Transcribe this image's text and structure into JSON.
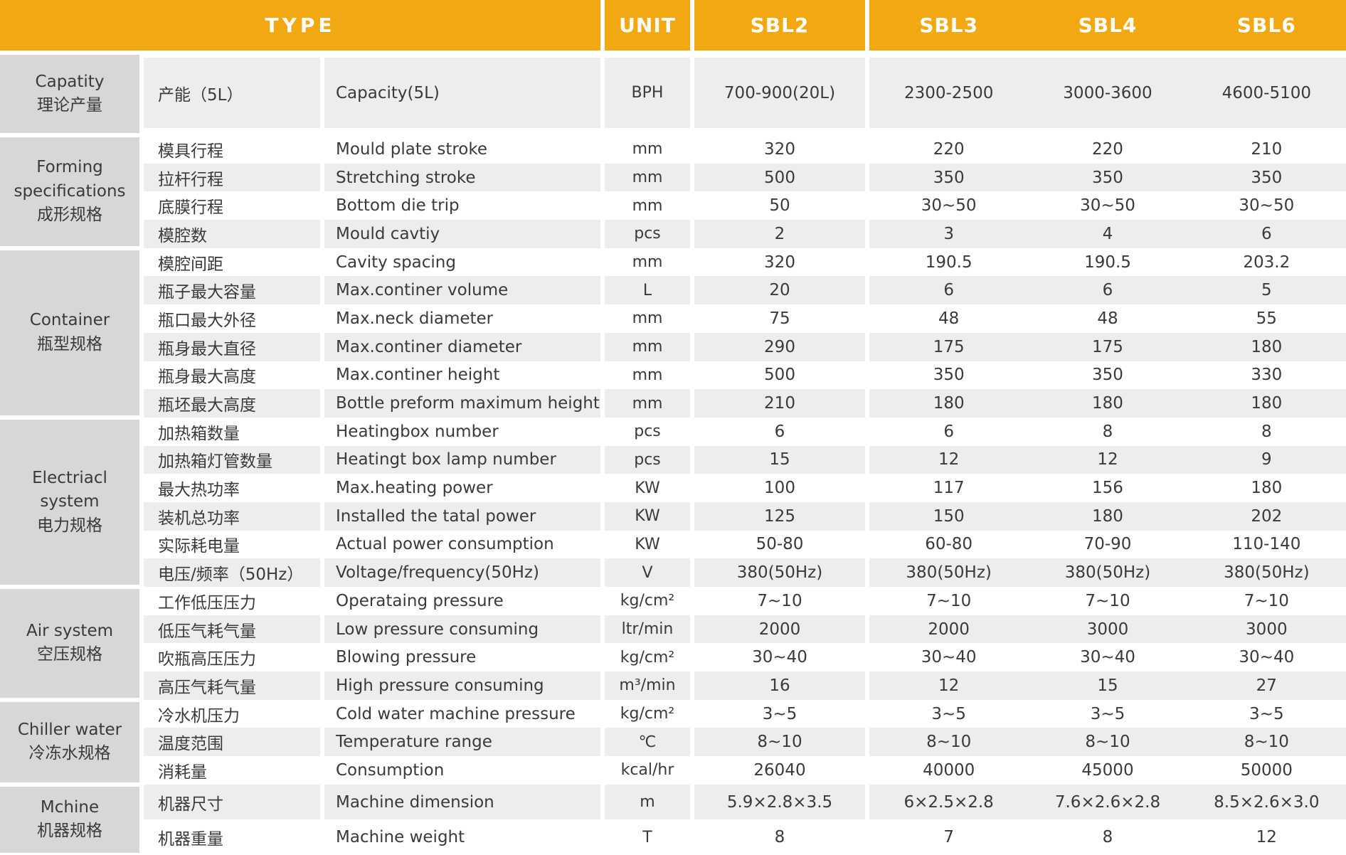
{
  "colors": {
    "header_bg": "#F2A911",
    "header_text": "#FFFFFF",
    "stripe_gray": "#EDEDED",
    "category_bg": "#D8D7D5",
    "body_text": "#3A3A3A"
  },
  "header": {
    "type_label": "TYPE",
    "unit_label": "UNIT",
    "models": [
      "SBL2",
      "SBL3",
      "SBL4",
      "SBL6"
    ]
  },
  "groups": [
    {
      "category_lines": [
        "Capatity",
        "理论产量"
      ],
      "rows": [
        {
          "cn": "产能（5L）",
          "en": "Capacity(5L)",
          "unit": "BPH",
          "values": [
            "700-900(20L)",
            "2300-2500",
            "3000-3600",
            "4600-5100"
          ]
        }
      ]
    },
    {
      "category_lines": [
        "Forming",
        "specifications",
        "成形规格"
      ],
      "rows": [
        {
          "cn": "模具行程",
          "en": "Mould plate stroke",
          "unit": "mm",
          "values": [
            "320",
            "220",
            "220",
            "210"
          ]
        },
        {
          "cn": "拉杆行程",
          "en": "Stretching stroke",
          "unit": "mm",
          "values": [
            "500",
            "350",
            "350",
            "350"
          ]
        },
        {
          "cn": "底膜行程",
          "en": "Bottom die trip",
          "unit": "mm",
          "values": [
            "50",
            "30~50",
            "30~50",
            "30~50"
          ]
        },
        {
          "cn": "模腔数",
          "en": "Mould cavtiy",
          "unit": "pcs",
          "values": [
            "2",
            "3",
            "4",
            "6"
          ]
        }
      ]
    },
    {
      "category_lines": [
        "Container",
        "瓶型规格"
      ],
      "rows": [
        {
          "cn": "模腔间距",
          "en": "Cavity spacing",
          "unit": "mm",
          "values": [
            "320",
            "190.5",
            "190.5",
            "203.2"
          ]
        },
        {
          "cn": "瓶子最大容量",
          "en": "Max.continer volume",
          "unit": "L",
          "values": [
            "20",
            "6",
            "6",
            "5"
          ]
        },
        {
          "cn": "瓶口最大外径",
          "en": "Max.neck diameter",
          "unit": "mm",
          "values": [
            "75",
            "48",
            "48",
            "55"
          ]
        },
        {
          "cn": "瓶身最大直径",
          "en": "Max.continer diameter",
          "unit": "mm",
          "values": [
            "290",
            "175",
            "175",
            "180"
          ]
        },
        {
          "cn": "瓶身最大高度",
          "en": "Max.continer height",
          "unit": "mm",
          "values": [
            "500",
            "350",
            "350",
            "330"
          ]
        },
        {
          "cn": "瓶坯最大高度",
          "en": "Bottle preform maximum height",
          "unit": "mm",
          "values": [
            "210",
            "180",
            "180",
            "180"
          ]
        }
      ]
    },
    {
      "category_lines": [
        "Electriacl",
        "system",
        "电力规格"
      ],
      "rows": [
        {
          "cn": "加热箱数量",
          "en": "Heatingbox number",
          "unit": "pcs",
          "values": [
            "6",
            "6",
            "8",
            "8"
          ]
        },
        {
          "cn": "加热箱灯管数量",
          "en": "Heatingt box lamp number",
          "unit": "pcs",
          "values": [
            "15",
            "12",
            "12",
            "9"
          ]
        },
        {
          "cn": "最大热功率",
          "en": "Max.heating power",
          "unit": "KW",
          "values": [
            "100",
            "117",
            "156",
            "180"
          ]
        },
        {
          "cn": "装机总功率",
          "en": "Installed the tatal power",
          "unit": "KW",
          "values": [
            "125",
            "150",
            "180",
            "202"
          ]
        },
        {
          "cn": "实际耗电量",
          "en": "Actual power consumption",
          "unit": "KW",
          "values": [
            "50-80",
            "60-80",
            "70-90",
            "110-140"
          ]
        },
        {
          "cn": "电压/频率（50Hz）",
          "en": "Voltage/frequency(50Hz)",
          "unit": "V",
          "values": [
            "380(50Hz)",
            "380(50Hz)",
            "380(50Hz)",
            "380(50Hz)"
          ]
        }
      ]
    },
    {
      "category_lines": [
        "Air system",
        "空压规格"
      ],
      "rows": [
        {
          "cn": "工作低压压力",
          "en": "Operataing pressure",
          "unit": "kg/cm²",
          "values": [
            "7~10",
            "7~10",
            "7~10",
            "7~10"
          ]
        },
        {
          "cn": "低压气耗气量",
          "en": "Low pressure consuming",
          "unit": "ltr/min",
          "values": [
            "2000",
            "2000",
            "3000",
            "3000"
          ]
        },
        {
          "cn": "吹瓶高压压力",
          "en": "Blowing pressure",
          "unit": "kg/cm²",
          "values": [
            "30~40",
            "30~40",
            "30~40",
            "30~40"
          ]
        },
        {
          "cn": "高压气耗气量",
          "en": "High pressure consuming",
          "unit": "m³/min",
          "values": [
            "16",
            "12",
            "15",
            "27"
          ]
        }
      ]
    },
    {
      "category_lines": [
        "Chiller water",
        "冷冻水规格"
      ],
      "rows": [
        {
          "cn": "冷水机压力",
          "en": "Cold water machine pressure",
          "unit": "kg/cm²",
          "values": [
            "3~5",
            "3~5",
            "3~5",
            "3~5"
          ]
        },
        {
          "cn": "温度范围",
          "en": "Temperature range",
          "unit": "℃",
          "values": [
            "8~10",
            "8~10",
            "8~10",
            "8~10"
          ]
        },
        {
          "cn": "消耗量",
          "en": "Consumption",
          "unit": "kcal/hr",
          "values": [
            "26040",
            "40000",
            "45000",
            "50000"
          ]
        }
      ]
    },
    {
      "category_lines": [
        "Mchine",
        "机器规格"
      ],
      "rows": [
        {
          "cn": "机器尺寸",
          "en": "Machine dimension",
          "unit": "m",
          "values": [
            "5.9×2.8×3.5",
            "6×2.5×2.8",
            "7.6×2.6×2.8",
            "8.5×2.6×3.0"
          ]
        },
        {
          "cn": "机器重量",
          "en": "Machine weight",
          "unit": "T",
          "values": [
            "8",
            "7",
            "8",
            "12"
          ]
        }
      ]
    }
  ]
}
